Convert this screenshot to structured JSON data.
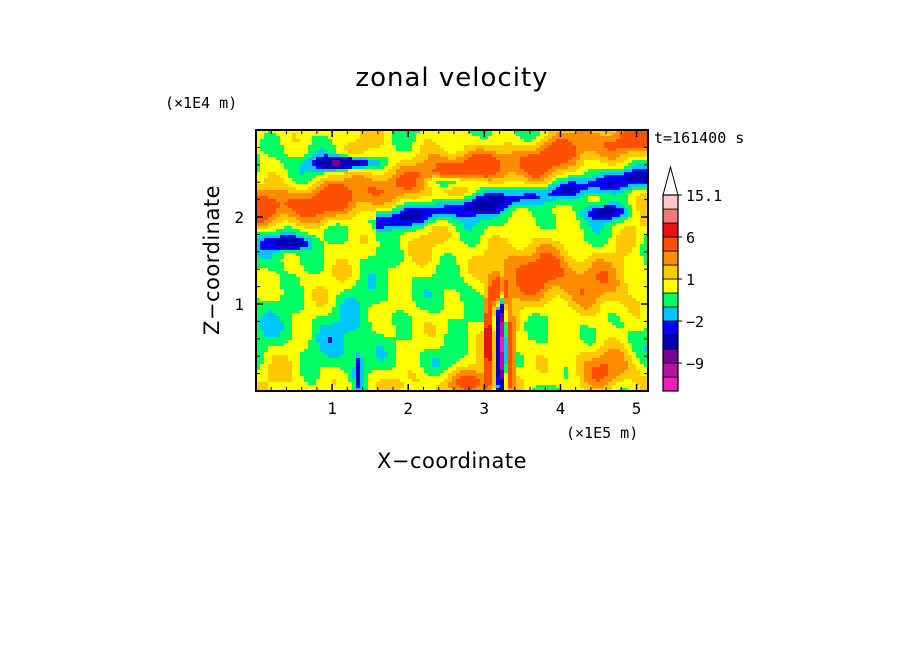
{
  "chart_data": {
    "type": "heatmap",
    "title": "zonal velocity",
    "xlabel": "X−coordinate",
    "ylabel": "Z−coordinate",
    "x_unit": "(×1E5 m)",
    "y_unit": "(×1E4 m)",
    "time_label": "t=161400 s",
    "xlim": [
      0,
      5.15
    ],
    "ylim": [
      0,
      3.0
    ],
    "x_ticks": [
      1,
      2,
      3,
      4,
      5
    ],
    "y_ticks": [
      1,
      2
    ],
    "x_tick_labels": [
      "1",
      "2",
      "3",
      "4",
      "5"
    ],
    "y_tick_labels": [
      "1",
      "2"
    ],
    "colorbar": {
      "levels": [
        -15,
        -12,
        -9,
        -6,
        -3,
        -2,
        -1,
        0,
        1,
        2,
        3,
        6,
        9,
        12,
        15.1
      ],
      "colors": [
        "#f01eb4",
        "#b414a0",
        "#780096",
        "#0000b4",
        "#0000ff",
        "#00c8ff",
        "#00ff64",
        "#ffff00",
        "#ffc800",
        "#ff8c00",
        "#ff5000",
        "#e61414",
        "#f07878",
        "#ffc8c8"
      ],
      "labels": [
        "15.1",
        "6",
        "1",
        "−2",
        "−9"
      ],
      "label_values": [
        15.1,
        6,
        1,
        -2,
        -9
      ],
      "extend": "max"
    }
  }
}
